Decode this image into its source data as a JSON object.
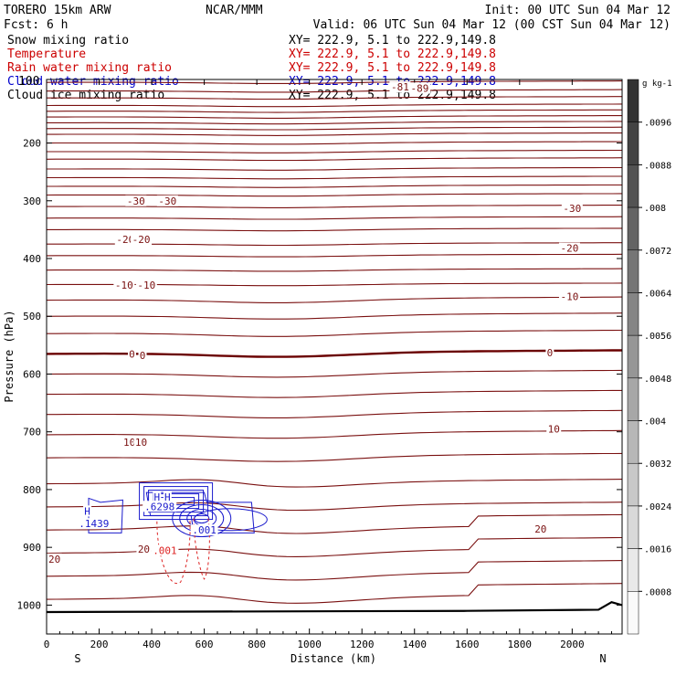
{
  "header": {
    "model": "TORERO  15km ARW",
    "center": "NCAR/MMM",
    "init": "Init: 00 UTC Sun 04 Mar 12",
    "fcst": "Fcst:    6 h",
    "valid": "Valid: 06 UTC Sun 04 Mar 12 (00 CST Sun 04 Mar 12)"
  },
  "fields": [
    {
      "label": "Snow mixing ratio",
      "xy": "XY= 222.9,  5.1 to 222.9,149.8",
      "color": "#000000"
    },
    {
      "label": "Temperature",
      "xy": "XY= 222.9,  5.1 to 222.9,149.8",
      "color": "#cc0000"
    },
    {
      "label": "Rain water mixing ratio",
      "xy": "XY= 222.9,  5.1 to 222.9,149.8",
      "color": "#cc0000"
    },
    {
      "label": "Cloud water mixing ratio",
      "xy": "XY= 222.9,  5.1 to 222.9,149.8",
      "color": "#0000cc"
    },
    {
      "label": "Cloud ice mixing ratio",
      "xy": "XY= 222.9,  5.1 to 222.9,149.8",
      "color": "#000000"
    }
  ],
  "overlap_text": "100",
  "colors": {
    "temperature": "#7a1010",
    "zero_isotherm": "#6a0000",
    "cloud_water": "#1a1acc",
    "rain": "#dd2222",
    "terrain": "#000000"
  },
  "chart_data": {
    "type": "line",
    "title": "",
    "xlabel": "Distance (km)",
    "ylabel": "Pressure (hPa)",
    "xlim": [
      0,
      2190
    ],
    "ylim": [
      1050,
      90
    ],
    "x_ticks": [
      0,
      200,
      400,
      600,
      800,
      1000,
      1200,
      1400,
      1600,
      1800,
      2000
    ],
    "x_tick_labels": [
      "0",
      "200",
      "400",
      "600",
      "800",
      "1000",
      "1200",
      "1400",
      "1600",
      "1800",
      "2000"
    ],
    "y_ticks": [
      200,
      300,
      400,
      500,
      600,
      700,
      800,
      900,
      1000
    ],
    "y_tick_labels": [
      "200",
      "300",
      "400",
      "500",
      "600",
      "700",
      "800",
      "900",
      "1000"
    ],
    "x_end_labels": {
      "left": "S",
      "right": "N"
    },
    "temperature_isotherm_pressures": [
      95,
      110,
      122,
      135,
      145,
      155,
      165,
      175,
      185,
      200,
      215,
      228,
      245,
      260,
      275,
      290,
      310,
      330,
      350,
      375,
      395,
      420,
      445,
      472,
      500,
      530,
      565,
      600,
      635,
      670,
      705,
      745,
      790,
      830,
      870,
      910,
      950,
      990
    ],
    "temperature_labels": [
      {
        "text": "-30",
        "x": 340,
        "p": 300
      },
      {
        "text": "-30",
        "x": 460,
        "p": 300
      },
      {
        "text": "-30",
        "x": 2000,
        "p": 313
      },
      {
        "text": "-20",
        "x": 300,
        "p": 367
      },
      {
        "text": "-20",
        "x": 360,
        "p": 367
      },
      {
        "text": "-20",
        "x": 1990,
        "p": 382
      },
      {
        "text": "-10",
        "x": 295,
        "p": 446
      },
      {
        "text": "-10",
        "x": 380,
        "p": 446
      },
      {
        "text": "-10",
        "x": 1990,
        "p": 466
      },
      {
        "text": "0",
        "x": 325,
        "p": 565
      },
      {
        "text": "0",
        "x": 365,
        "p": 568
      },
      {
        "text": "0",
        "x": 1915,
        "p": 563
      },
      {
        "text": "10",
        "x": 315,
        "p": 718
      },
      {
        "text": "10",
        "x": 360,
        "p": 718
      },
      {
        "text": "10",
        "x": 1930,
        "p": 695
      },
      {
        "text": "20",
        "x": 370,
        "p": 903
      },
      {
        "text": "20",
        "x": 30,
        "p": 920
      },
      {
        "text": "20",
        "x": 1880,
        "p": 868
      },
      {
        "text": "-81",
        "x": 1345,
        "p": 103
      },
      {
        "text": "-89",
        "x": 1420,
        "p": 105
      }
    ],
    "cloud_water_labels": [
      {
        "text": "H",
        "x": 155,
        "p": 837
      },
      {
        "text": ".1439",
        "x": 180,
        "p": 859
      },
      {
        "text": "H",
        "x": 420,
        "p": 813
      },
      {
        "text": "H",
        "x": 460,
        "p": 813
      },
      {
        "text": ".6298",
        "x": 430,
        "p": 829
      },
      {
        "text": ".001",
        "x": 600,
        "p": 870
      }
    ],
    "rain_labels": [
      {
        "text": ".001",
        "x": 450,
        "p": 905
      }
    ],
    "colorbar": {
      "label": "g kg-1",
      "tick_labels": [
        ".0008",
        ".0016",
        ".0024",
        ".0032",
        ".004",
        ".0048",
        ".0056",
        ".0064",
        ".0072",
        ".008",
        ".0088",
        ".0096"
      ]
    }
  }
}
